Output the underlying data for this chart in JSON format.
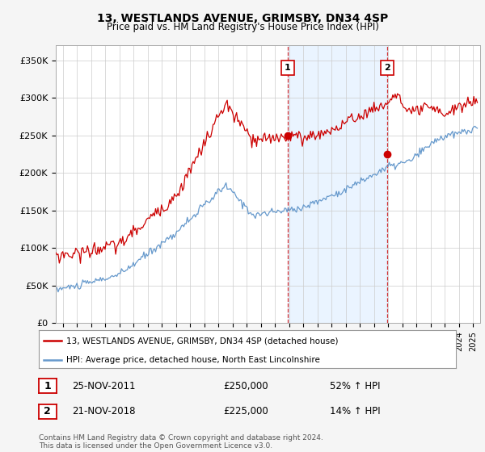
{
  "title": "13, WESTLANDS AVENUE, GRIMSBY, DN34 4SP",
  "subtitle": "Price paid vs. HM Land Registry's House Price Index (HPI)",
  "ylabel_ticks": [
    "£0",
    "£50K",
    "£100K",
    "£150K",
    "£200K",
    "£250K",
    "£300K",
    "£350K"
  ],
  "ytick_values": [
    0,
    50000,
    100000,
    150000,
    200000,
    250000,
    300000,
    350000
  ],
  "ylim": [
    0,
    370000
  ],
  "xlim_start": 1995.5,
  "xlim_end": 2025.5,
  "red_color": "#cc0000",
  "blue_color": "#6699cc",
  "blue_shade_color": "#ddeeff",
  "sale1_x": 2011.9,
  "sale1_y": 250000,
  "sale2_x": 2018.92,
  "sale2_y": 225000,
  "legend_line1": "13, WESTLANDS AVENUE, GRIMSBY, DN34 4SP (detached house)",
  "legend_line2": "HPI: Average price, detached house, North East Lincolnshire",
  "table_row1": [
    "1",
    "25-NOV-2011",
    "£250,000",
    "52% ↑ HPI"
  ],
  "table_row2": [
    "2",
    "21-NOV-2018",
    "£225,000",
    "14% ↑ HPI"
  ],
  "footnote": "Contains HM Land Registry data © Crown copyright and database right 2024.\nThis data is licensed under the Open Government Licence v3.0.",
  "bg_color": "#f5f5f5",
  "plot_bg_color": "#ffffff",
  "grid_color": "#cccccc"
}
